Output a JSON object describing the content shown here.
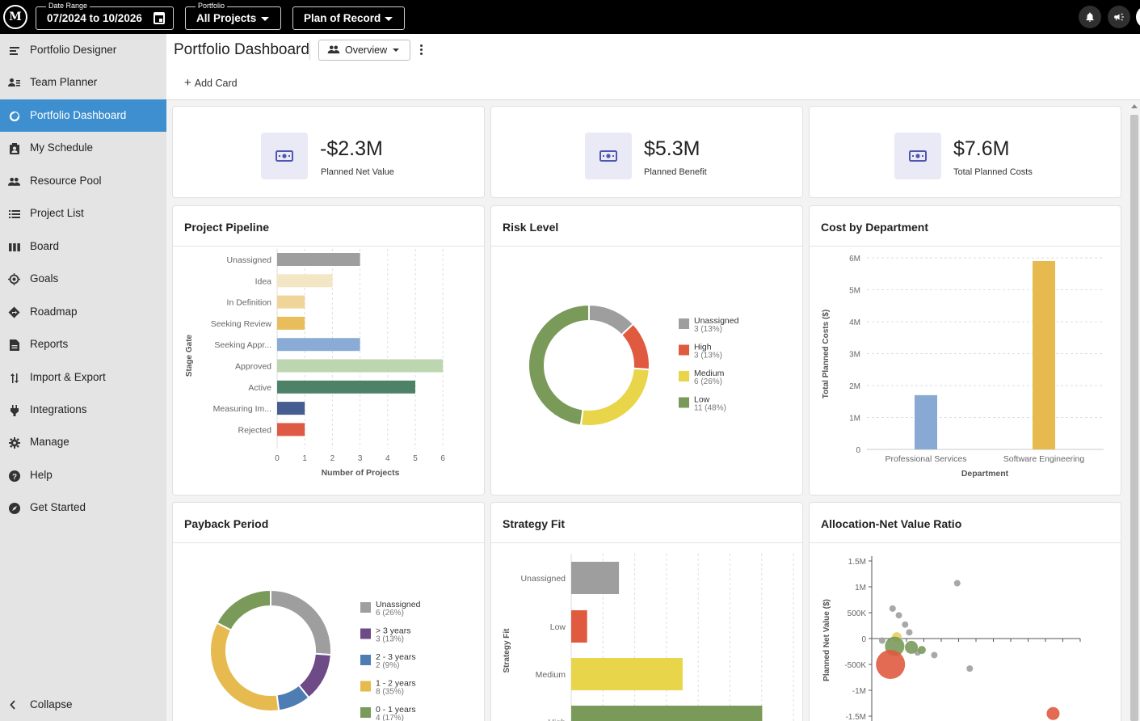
{
  "topbar": {
    "logo_text": "M",
    "date_range": {
      "legend": "Date Range",
      "value": "07/2024 to 10/2026"
    },
    "portfolio": {
      "legend": "Portfolio",
      "value": "All Projects"
    },
    "plan": {
      "value": "Plan of Record"
    }
  },
  "sidebar": {
    "items": [
      {
        "label": "Portfolio Designer",
        "icon": "designer-icon"
      },
      {
        "label": "Team Planner",
        "icon": "team-planner-icon"
      },
      {
        "label": "Portfolio Dashboard",
        "icon": "dashboard-icon",
        "active": true
      },
      {
        "label": "My Schedule",
        "icon": "schedule-icon"
      },
      {
        "label": "Resource Pool",
        "icon": "people-icon"
      },
      {
        "label": "Project List",
        "icon": "list-icon"
      },
      {
        "label": "Board",
        "icon": "board-icon"
      },
      {
        "label": "Goals",
        "icon": "target-icon"
      },
      {
        "label": "Roadmap",
        "icon": "roadmap-icon"
      },
      {
        "label": "Reports",
        "icon": "report-icon"
      },
      {
        "label": "Import & Export",
        "icon": "import-export-icon"
      },
      {
        "label": "Integrations",
        "icon": "plug-icon"
      },
      {
        "label": "Manage",
        "icon": "gear-icon"
      },
      {
        "label": "Help",
        "icon": "help-icon"
      },
      {
        "label": "Get Started",
        "icon": "compass-icon"
      }
    ],
    "collapse_label": "Collapse"
  },
  "header": {
    "title": "Portfolio Dashboard",
    "view": "Overview",
    "add_card": "Add Card"
  },
  "kpis": [
    {
      "value": "-$2.3M",
      "label": "Planned Net Value"
    },
    {
      "value": "$5.3M",
      "label": "Planned Benefit"
    },
    {
      "value": "$7.6M",
      "label": "Total Planned Costs"
    }
  ],
  "cards": {
    "pipeline": "Project Pipeline",
    "risk": "Risk Level",
    "cost": "Cost by Department",
    "payback": "Payback Period",
    "strategy": "Strategy Fit",
    "allocation": "Allocation-Net Value Ratio"
  },
  "chart_data": [
    {
      "id": "pipeline",
      "type": "bar",
      "orientation": "horizontal",
      "categories": [
        "Unassigned",
        "Idea",
        "In Definition",
        "Seeking Review",
        "Seeking Appr...",
        "Approved",
        "Active",
        "Measuring Im...",
        "Rejected"
      ],
      "values": [
        3,
        2,
        1,
        1,
        3,
        6,
        5,
        1,
        1
      ],
      "colors": [
        "#9e9e9e",
        "#f3e6c4",
        "#f0d59a",
        "#e8be5d",
        "#8aabd6",
        "#bcd6b0",
        "#4e8268",
        "#465d91",
        "#de5a44"
      ],
      "xlabel": "Number of Projects",
      "ylabel": "Stage Gate",
      "xticks": [
        "0",
        "1",
        "2",
        "3",
        "4",
        "5",
        "6"
      ],
      "xlim": [
        0,
        6
      ]
    },
    {
      "id": "risk",
      "type": "pie",
      "labels": [
        "Unassigned",
        "High",
        "Medium",
        "Low"
      ],
      "values": [
        3,
        3,
        6,
        11
      ],
      "subs": [
        "3 (13%)",
        "3 (13%)",
        "6 (26%)",
        "11 (48%)"
      ],
      "colors": [
        "#9e9e9e",
        "#e05a40",
        "#e8d54a",
        "#7a9a5a"
      ],
      "legend": "right"
    },
    {
      "id": "cost",
      "type": "bar",
      "categories": [
        "Professional Services",
        "Software Engineering"
      ],
      "values": [
        1700000,
        5900000
      ],
      "colors": [
        "#88a9d3",
        "#e6ba4e"
      ],
      "xlabel": "Department",
      "ylabel": "Total Planned Costs ($)",
      "yticks": [
        "0",
        "1M",
        "2M",
        "3M",
        "4M",
        "5M",
        "6M"
      ],
      "ylim": [
        0,
        6000000
      ]
    },
    {
      "id": "payback",
      "type": "pie",
      "labels": [
        "Unassigned",
        "> 3 years",
        "2 - 3 years",
        "1 - 2 years",
        "0 - 1 years"
      ],
      "values": [
        6,
        3,
        2,
        8,
        4
      ],
      "subs": [
        "6 (26%)",
        "3 (13%)",
        "2 (9%)",
        "8 (35%)",
        "4 (17%)"
      ],
      "colors": [
        "#9e9e9e",
        "#6e4a87",
        "#4d7db3",
        "#e6ba4e",
        "#7a9a5a"
      ],
      "legend": "right"
    },
    {
      "id": "strategy",
      "type": "bar",
      "orientation": "horizontal",
      "categories": [
        "Unassigned",
        "Low",
        "Medium",
        "High"
      ],
      "values": [
        3,
        1,
        7,
        12
      ],
      "colors": [
        "#9e9e9e",
        "#e05a40",
        "#e8d54a",
        "#7a9a5a"
      ],
      "ylabel": "Strategy Fit"
    },
    {
      "id": "allocation",
      "type": "scatter",
      "ylabel": "Planned Net Value ($)",
      "yticks": [
        "1.5M",
        "1M",
        "500K",
        "0",
        "-500K",
        "-1M",
        "-1.5M"
      ],
      "ylim": [
        -1500000,
        1500000
      ],
      "xlim": [
        0,
        1
      ],
      "points": [
        {
          "x": 0.41,
          "y": 1070000,
          "r": 4,
          "color": "#9e9e9e"
        },
        {
          "x": 0.1,
          "y": 580000,
          "r": 4,
          "color": "#9e9e9e"
        },
        {
          "x": 0.13,
          "y": 450000,
          "r": 4,
          "color": "#9e9e9e"
        },
        {
          "x": 0.16,
          "y": 270000,
          "r": 4,
          "color": "#9e9e9e"
        },
        {
          "x": 0.18,
          "y": 120000,
          "r": 4,
          "color": "#9e9e9e"
        },
        {
          "x": 0.05,
          "y": -40000,
          "r": 4,
          "color": "#9e9e9e"
        },
        {
          "x": 0.22,
          "y": -270000,
          "r": 4,
          "color": "#9e9e9e"
        },
        {
          "x": 0.3,
          "y": -320000,
          "r": 4,
          "color": "#9e9e9e"
        },
        {
          "x": 0.47,
          "y": -580000,
          "r": 4,
          "color": "#9e9e9e"
        },
        {
          "x": 0.12,
          "y": 30000,
          "r": 6,
          "color": "#e6d060"
        },
        {
          "x": 0.11,
          "y": -150000,
          "r": 12,
          "color": "#7a9a5a"
        },
        {
          "x": 0.19,
          "y": -170000,
          "r": 8,
          "color": "#7a9a5a"
        },
        {
          "x": 0.24,
          "y": -220000,
          "r": 5,
          "color": "#7a9a5a"
        },
        {
          "x": 0.09,
          "y": -500000,
          "r": 18,
          "color": "#e05a40"
        },
        {
          "x": 0.87,
          "y": -1450000,
          "r": 8,
          "color": "#e05a40"
        }
      ]
    }
  ]
}
